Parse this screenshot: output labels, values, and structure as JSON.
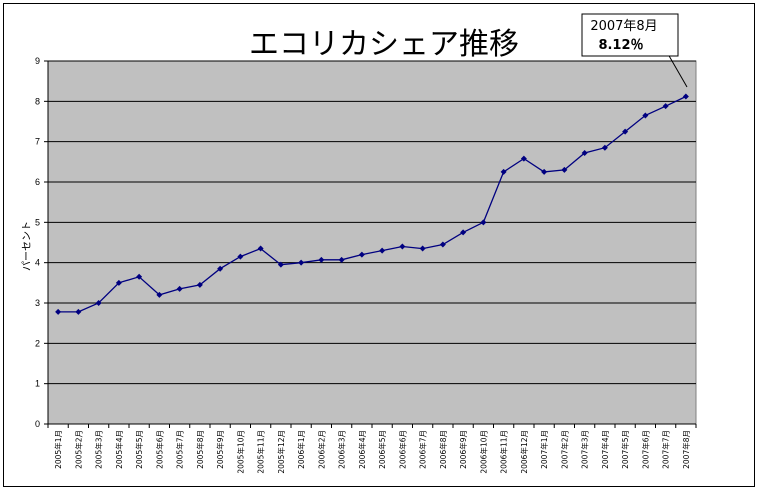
{
  "chart_data": {
    "type": "line",
    "title": "エコリカシェア推移",
    "ylabel": "パーセント",
    "ylim": [
      0,
      9
    ],
    "yticks": [
      "0",
      "1",
      "2",
      "3",
      "4",
      "5",
      "6",
      "7",
      "8",
      "9"
    ],
    "grid": true,
    "legend": "none",
    "colors": {
      "plot_bg": "#c0c0c0",
      "line": "#000080",
      "grid": "#000000"
    },
    "categories": [
      "2005年1月",
      "2005年2月",
      "2005年3月",
      "2005年4月",
      "2005年5月",
      "2005年6月",
      "2005年7月",
      "2005年8月",
      "2005年9月",
      "2005年10月",
      "2005年11月",
      "2005年12月",
      "2006年1月",
      "2006年2月",
      "2006年3月",
      "2006年4月",
      "2006年5月",
      "2006年6月",
      "2006年7月",
      "2006年8月",
      "2006年9月",
      "2006年10月",
      "2006年11月",
      "2006年12月",
      "2007年1月",
      "2007年2月",
      "2007年3月",
      "2007年4月",
      "2007年5月",
      "2007年6月",
      "2007年7月",
      "2007年8月"
    ],
    "series": [
      {
        "values": [
          2.78,
          2.78,
          3.0,
          3.5,
          3.65,
          3.2,
          3.35,
          3.45,
          3.85,
          4.15,
          4.35,
          3.95,
          4.0,
          4.07,
          4.07,
          4.2,
          4.3,
          4.4,
          4.35,
          4.45,
          4.75,
          5.0,
          6.25,
          6.58,
          6.25,
          6.3,
          6.72,
          6.85,
          7.25,
          7.65,
          7.88,
          8.12
        ]
      }
    ],
    "annotation": {
      "line1": "2007年8月",
      "line2": "8.12％"
    }
  }
}
